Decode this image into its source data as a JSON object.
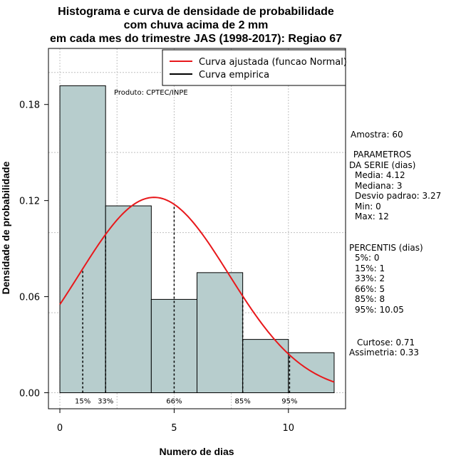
{
  "chart_data": {
    "type": "bar",
    "title_lines": [
      "Histograma e curva de densidade de probabilidade",
      "com chuva acima de 2 mm",
      "em cada mes do trimestre JAS (1998-2017): Regiao 67"
    ],
    "xlabel": "Numero de dias",
    "ylabel": "Densidade de probabilidade",
    "xlim": [
      -0.5,
      12.5
    ],
    "ylim": [
      -0.01,
      0.215
    ],
    "x_ticks": [
      0,
      5,
      10
    ],
    "y_ticks": [
      0.0,
      0.06,
      0.12,
      0.18
    ],
    "y_tick_labels": [
      "0.00",
      "0.06",
      "0.12",
      "0.18"
    ],
    "bin_edges": [
      0,
      2,
      4,
      6,
      8,
      10,
      12
    ],
    "densities": [
      0.1917,
      0.1167,
      0.0583,
      0.075,
      0.0333,
      0.025
    ],
    "normal_fit": {
      "mean": 4.12,
      "sd": 3.27
    },
    "legend": [
      "Curva ajustada (funcao Normal)",
      "Curva empirica"
    ],
    "legend_colors": [
      "#e8181b",
      "#000000"
    ],
    "bar_color": "#b7cdcd",
    "curve_color": "#e8181b",
    "percentile_markers": [
      {
        "label": "15%",
        "x": 1
      },
      {
        "label": "33%",
        "x": 2
      },
      {
        "label": "66%",
        "x": 5
      },
      {
        "label": "85%",
        "x": 8
      },
      {
        "label": "95%",
        "x": 10.05
      }
    ]
  },
  "credit": "Produto: CPTEC/INPE",
  "stats": {
    "sample": "Amostra: 60",
    "params_title": [
      " PARAMETROS",
      "DA SERIE (dias)"
    ],
    "params": [
      "Media: 4.12",
      "Mediana: 3",
      "Desvio padrao: 3.27",
      "Min: 0",
      "Max: 12"
    ],
    "percentis_title": "PERCENTIS (dias)",
    "percentis": [
      "5%: 0",
      "15%: 1",
      "33%: 2",
      "66%: 5",
      "85%: 8",
      "95%: 10.05"
    ],
    "curtose": "Curtose: 0.71",
    "assimetria": "Assimetria: 0.33"
  }
}
